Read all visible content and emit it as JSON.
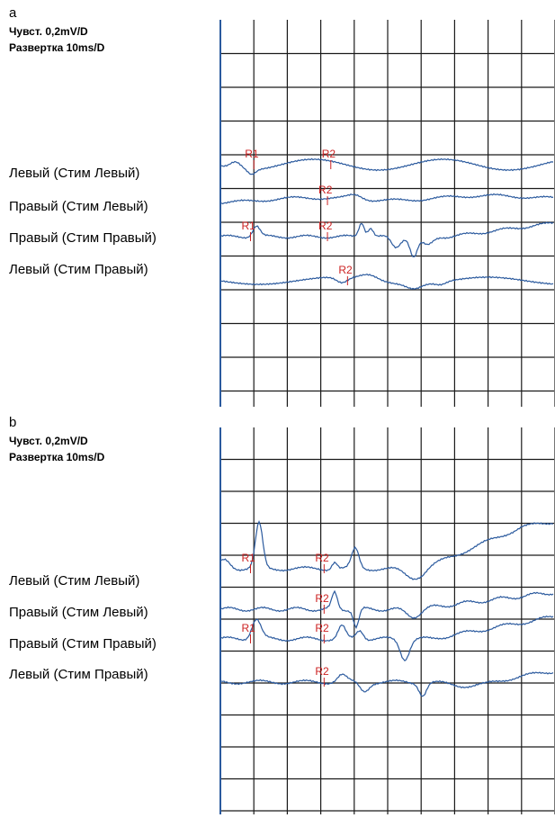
{
  "panels": [
    {
      "letter": "a",
      "sensitivity": "Чувст. 0,2mV/D",
      "sweep": "Развертка 10ms/D",
      "labels": [
        "Левый (Стим Левый)",
        "Правый (Стим Левый)",
        "Правый (Стим Правый)",
        "Левый (Стим Правый)"
      ],
      "markers": [
        {
          "text": "R1",
          "trace": 0,
          "div": 1.0
        },
        {
          "text": "R2",
          "trace": 0,
          "div": 3.3
        },
        {
          "text": "R2",
          "trace": 1,
          "div": 3.2
        },
        {
          "text": "R1",
          "trace": 2,
          "div": 0.9
        },
        {
          "text": "R2",
          "trace": 2,
          "div": 3.2
        },
        {
          "text": "R2",
          "trace": 3,
          "div": 3.8
        }
      ]
    },
    {
      "letter": "b",
      "sensitivity": "Чувст. 0,2mV/D",
      "sweep": "Развертка 10ms/D",
      "labels": [
        "Левый (Стим Левый)",
        "Правый (Стим Левый)",
        "Правый (Стим Правый)",
        "Левый (Стим Правый)"
      ],
      "markers": [
        {
          "text": "R1",
          "trace": 0,
          "div": 0.9
        },
        {
          "text": "R2",
          "trace": 0,
          "div": 3.1
        },
        {
          "text": "R2",
          "trace": 1,
          "div": 3.1
        },
        {
          "text": "R1",
          "trace": 2,
          "div": 0.9
        },
        {
          "text": "R2",
          "trace": 2,
          "div": 3.1
        },
        {
          "text": "R2",
          "trace": 3,
          "div": 3.1
        }
      ]
    }
  ],
  "colors": {
    "trace": "#2b5a9e",
    "grid": "#1a1a1a",
    "baseline": "#2b5a9e",
    "marker": "#cc2222"
  }
}
